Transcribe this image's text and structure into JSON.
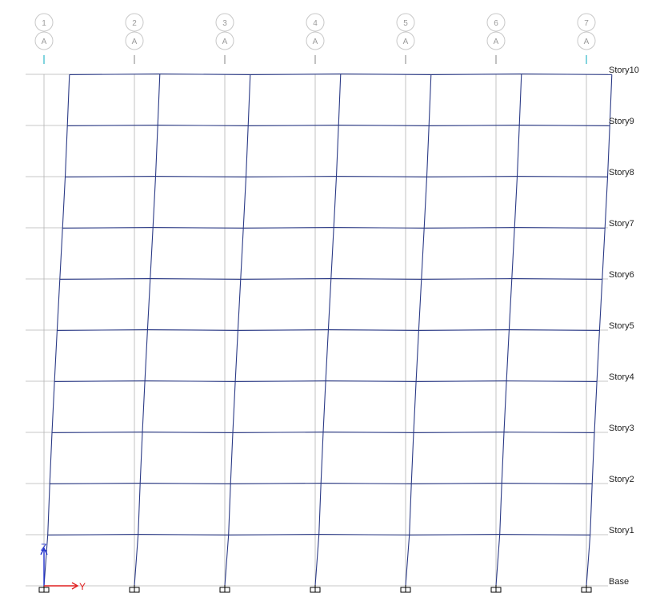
{
  "view": {
    "background": "#ffffff",
    "grid_color": "#b4b4b4",
    "frame_color": "#2b3a86",
    "bubble_stroke": "#c8c8c8",
    "bubble_text_color": "#9a9a9a",
    "grid_tick_color": "#2fb8c8",
    "story_label_color": "#222222",
    "support_color": "#000000"
  },
  "grid_lines": [
    {
      "number": "1",
      "letter": "A",
      "highlight": true
    },
    {
      "number": "2",
      "letter": "A",
      "highlight": false
    },
    {
      "number": "3",
      "letter": "A",
      "highlight": false
    },
    {
      "number": "4",
      "letter": "A",
      "highlight": false
    },
    {
      "number": "5",
      "letter": "A",
      "highlight": false
    },
    {
      "number": "6",
      "letter": "A",
      "highlight": false
    },
    {
      "number": "7",
      "letter": "A",
      "highlight": true
    }
  ],
  "stories": [
    "Base",
    "Story1",
    "Story2",
    "Story3",
    "Story4",
    "Story5",
    "Story6",
    "Story7",
    "Story8",
    "Story9",
    "Story10"
  ],
  "deformed_shape": {
    "lateral_drift_by_level": [
      0,
      0.047,
      0.072,
      0.1,
      0.131,
      0.164,
      0.198,
      0.232,
      0.265,
      0.292,
      0.318
    ]
  },
  "axes": {
    "vertical_label": "Z",
    "horizontal_label": "Y",
    "vertical_color": "#2233cc",
    "horizontal_color": "#e02020"
  }
}
